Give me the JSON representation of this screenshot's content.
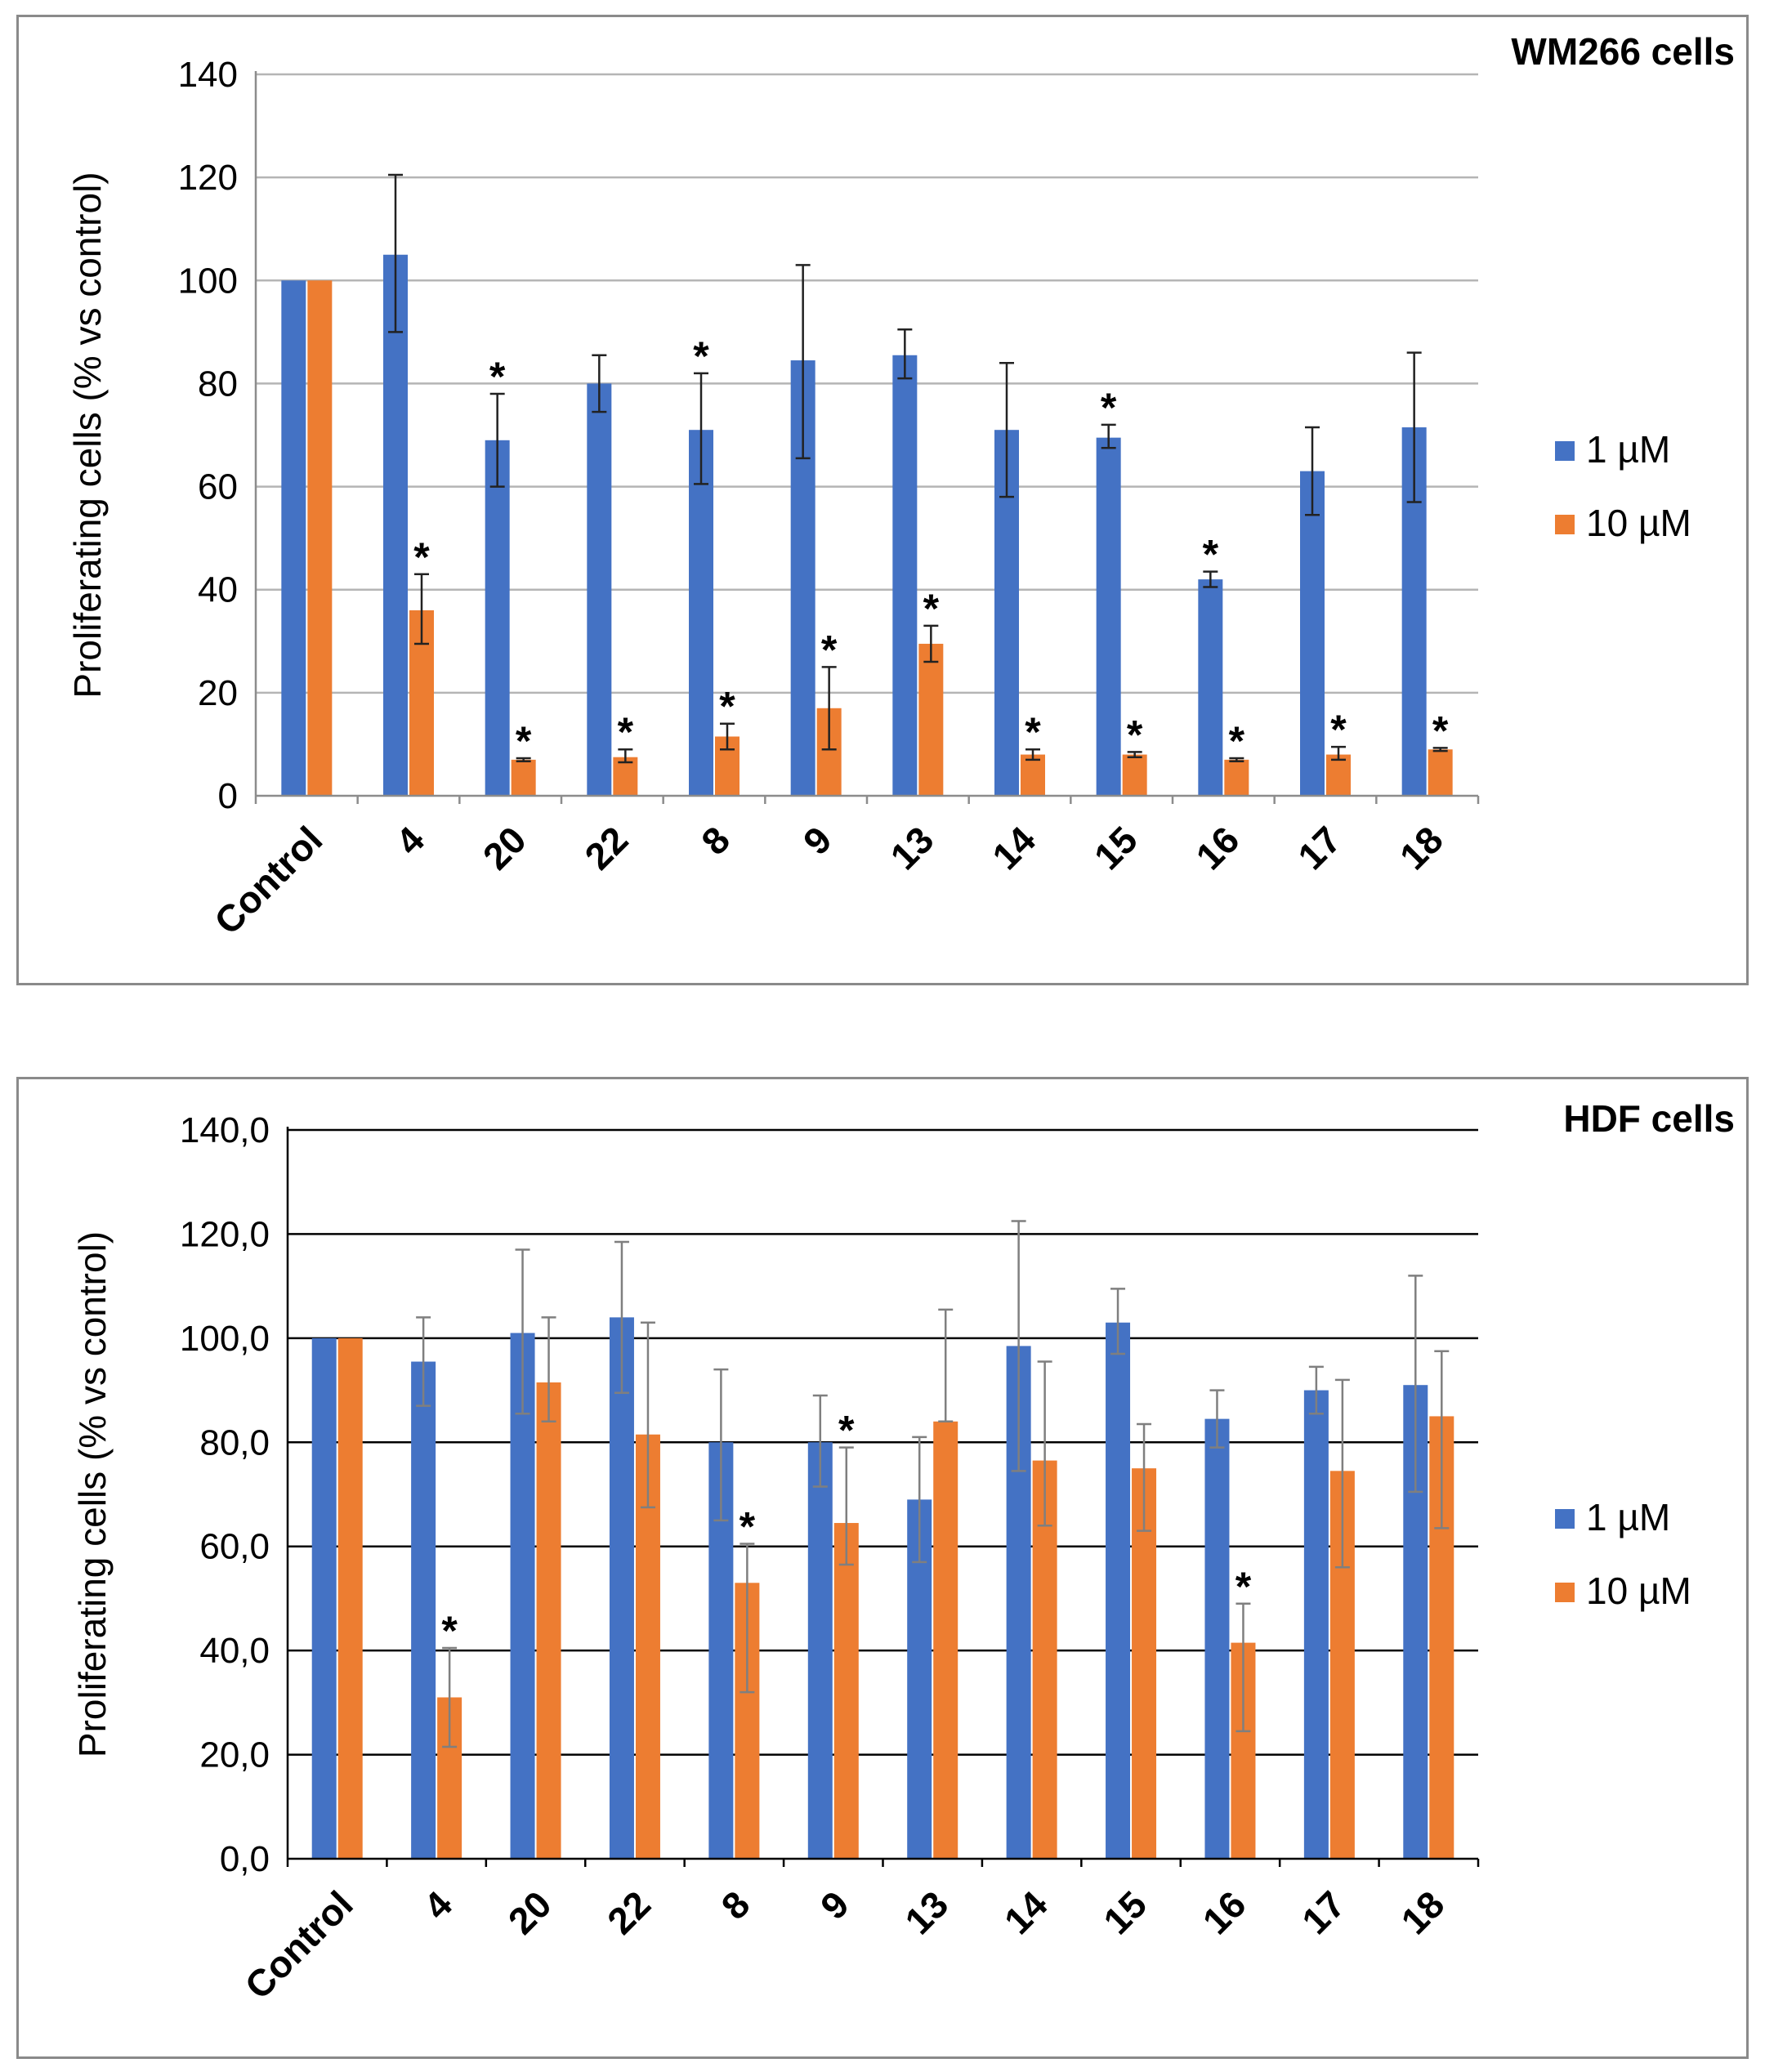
{
  "chart_data": [
    {
      "type": "bar",
      "title": "WM266 cells",
      "xlabel": "",
      "ylabel": "Proliferating cells (% vs control)",
      "ylim": [
        0,
        140
      ],
      "yticks": [
        "0",
        "20",
        "40",
        "60",
        "80",
        "100",
        "120",
        "140"
      ],
      "categories": [
        "Control",
        "4",
        "20",
        "22",
        "8",
        "9",
        "13",
        "14",
        "15",
        "16",
        "17",
        "18"
      ],
      "series": [
        {
          "name": "1 µM",
          "color": "#4472C4",
          "values": [
            100,
            105,
            69,
            80,
            71,
            84.5,
            85.5,
            71,
            69.5,
            42,
            63,
            71.5
          ],
          "err_high": [
            100,
            120.5,
            78,
            85.5,
            82,
            103,
            90.5,
            84,
            72,
            43.5,
            71.5,
            86
          ],
          "err_low": [
            100,
            90,
            60,
            74.5,
            60.5,
            65.5,
            81,
            58,
            67.5,
            40.5,
            54.5,
            57
          ],
          "significant": [
            false,
            false,
            true,
            false,
            true,
            false,
            false,
            false,
            true,
            true,
            false,
            false
          ]
        },
        {
          "name": "10 µM",
          "color": "#ED7D31",
          "values": [
            100,
            36,
            7,
            7.5,
            11.5,
            17,
            29.5,
            8,
            8,
            7,
            8,
            9
          ],
          "err_high": [
            100,
            43,
            7.3,
            9,
            14,
            25,
            33,
            9,
            8.5,
            7.3,
            9.5,
            9.3
          ],
          "err_low": [
            100,
            29.5,
            6.7,
            6.5,
            9,
            9,
            26,
            7,
            7.5,
            6.7,
            7,
            8.7
          ],
          "significant": [
            false,
            true,
            true,
            true,
            true,
            true,
            true,
            true,
            true,
            true,
            true,
            true
          ]
        }
      ],
      "legend": "right",
      "grid": true
    },
    {
      "type": "bar",
      "title": "HDF cells",
      "xlabel": "",
      "ylabel": "Proliferating cells  (% vs control)",
      "ylim": [
        0,
        140
      ],
      "yticks": [
        "0,0",
        "20,0",
        "40,0",
        "60,0",
        "80,0",
        "100,0",
        "120,0",
        "140,0"
      ],
      "categories": [
        "Control",
        "4",
        "20",
        "22",
        "8",
        "9",
        "13",
        "14",
        "15",
        "16",
        "17",
        "18"
      ],
      "series": [
        {
          "name": "1 µM",
          "color": "#4472C4",
          "values": [
            100,
            95.5,
            101,
            104,
            80,
            80,
            69,
            98.5,
            103,
            84.5,
            90,
            91
          ],
          "err_high": [
            100,
            104,
            117,
            118.5,
            94,
            89,
            81,
            122.5,
            109.5,
            90,
            94.5,
            112
          ],
          "err_low": [
            100,
            87,
            85.5,
            89.5,
            65,
            71.5,
            57,
            74.5,
            97,
            79,
            85.5,
            70.5
          ],
          "significant": [
            false,
            false,
            false,
            false,
            false,
            false,
            false,
            false,
            false,
            false,
            false,
            false
          ]
        },
        {
          "name": "10 µM",
          "color": "#ED7D31",
          "values": [
            100,
            31,
            91.5,
            81.5,
            53,
            64.5,
            84,
            76.5,
            75,
            41.5,
            74.5,
            85
          ],
          "err_high": [
            100,
            40.5,
            104,
            103,
            60.5,
            79,
            105.5,
            95.5,
            83.5,
            49,
            92,
            97.5
          ],
          "err_low": [
            100,
            21.5,
            84,
            67.5,
            32,
            56.5,
            84,
            64,
            63,
            24.5,
            56,
            63.5
          ],
          "significant": [
            false,
            true,
            false,
            false,
            true,
            true,
            false,
            false,
            false,
            true,
            false,
            false
          ]
        }
      ],
      "legend": "right",
      "grid": true
    }
  ]
}
